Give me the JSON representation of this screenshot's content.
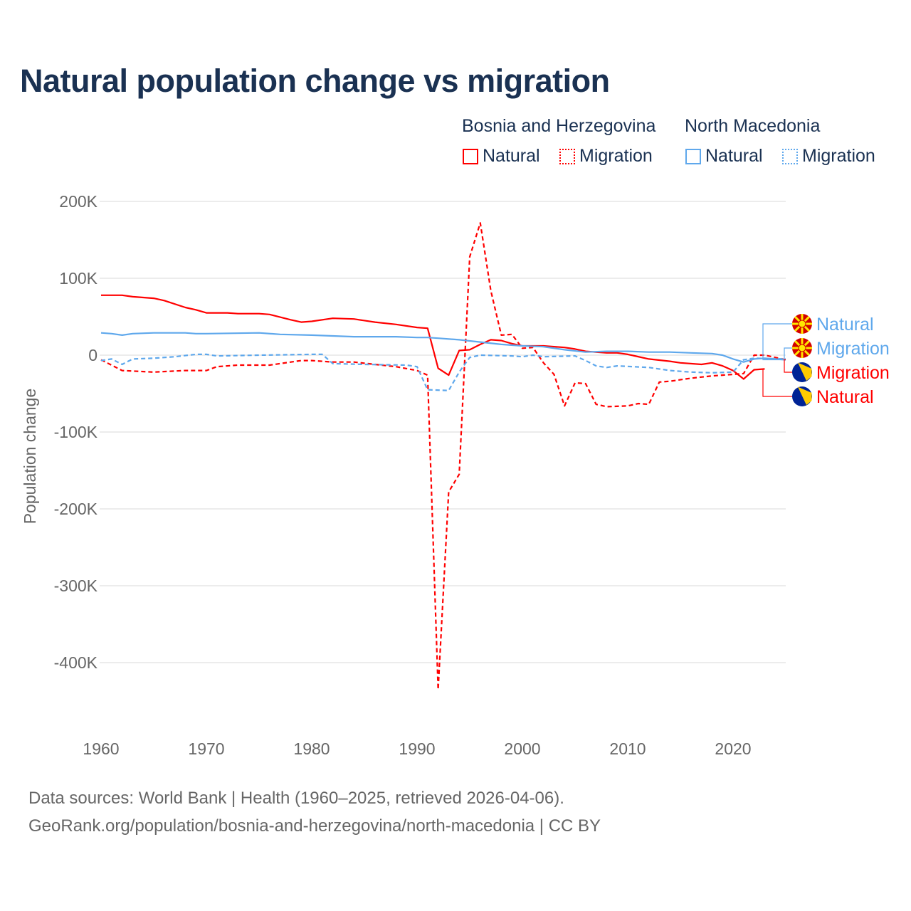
{
  "chart_data": {
    "type": "line",
    "title": "Natural population change vs migration",
    "xlabel": "",
    "ylabel": "Population change",
    "xlim": [
      1960,
      2025
    ],
    "ylim": [
      -450000,
      200000
    ],
    "xticks": [
      "1960",
      "1970",
      "1980",
      "1990",
      "2000",
      "2010",
      "2020"
    ],
    "yticks": [
      {
        "v": 200000,
        "label": "200K"
      },
      {
        "v": 100000,
        "label": "100K"
      },
      {
        "v": 0,
        "label": "0"
      },
      {
        "v": -100000,
        "label": "-100K"
      },
      {
        "v": -200000,
        "label": "-200K"
      },
      {
        "v": -300000,
        "label": "-300K"
      },
      {
        "v": -400000,
        "label": "-400K"
      }
    ],
    "grid": true,
    "legend_groups": [
      {
        "country": "Bosnia and Herzegovina",
        "items": [
          "Natural",
          "Migration"
        ],
        "color": "#ff0000"
      },
      {
        "country": "North Macedonia",
        "items": [
          "Natural",
          "Migration"
        ],
        "color": "#5fa8ec"
      }
    ],
    "series": [
      {
        "name": "Bosnia and Herzegovina Natural",
        "label": "Natural",
        "color": "#ff0000",
        "dash": false,
        "flag": "bosnia",
        "points": [
          [
            1960,
            78000
          ],
          [
            1962,
            78000
          ],
          [
            1963,
            76000
          ],
          [
            1965,
            74000
          ],
          [
            1966,
            71000
          ],
          [
            1968,
            62000
          ],
          [
            1969,
            59000
          ],
          [
            1970,
            55000
          ],
          [
            1972,
            55000
          ],
          [
            1973,
            54000
          ],
          [
            1975,
            54000
          ],
          [
            1976,
            53000
          ],
          [
            1978,
            46000
          ],
          [
            1979,
            43000
          ],
          [
            1980,
            44000
          ],
          [
            1982,
            48000
          ],
          [
            1984,
            47000
          ],
          [
            1986,
            43000
          ],
          [
            1988,
            40000
          ],
          [
            1990,
            36000
          ],
          [
            1991,
            35000
          ],
          [
            1992,
            -17000
          ],
          [
            1993,
            -26000
          ],
          [
            1994,
            6000
          ],
          [
            1995,
            7000
          ],
          [
            1996,
            14000
          ],
          [
            1997,
            20000
          ],
          [
            1998,
            19000
          ],
          [
            1999,
            15000
          ],
          [
            2000,
            12000
          ],
          [
            2002,
            12000
          ],
          [
            2004,
            10000
          ],
          [
            2005,
            8000
          ],
          [
            2006,
            5000
          ],
          [
            2008,
            3000
          ],
          [
            2009,
            3000
          ],
          [
            2010,
            1000
          ],
          [
            2012,
            -5000
          ],
          [
            2014,
            -8000
          ],
          [
            2015,
            -10000
          ],
          [
            2017,
            -12000
          ],
          [
            2018,
            -10000
          ],
          [
            2019,
            -14000
          ],
          [
            2020,
            -20000
          ],
          [
            2021,
            -31000
          ],
          [
            2022,
            -19000
          ],
          [
            2023,
            -18000
          ]
        ]
      },
      {
        "name": "Bosnia and Herzegovina Migration",
        "label": "Migration",
        "color": "#ff0000",
        "dash": true,
        "flag": "bosnia",
        "points": [
          [
            1960,
            -6000
          ],
          [
            1962,
            -20000
          ],
          [
            1965,
            -22000
          ],
          [
            1968,
            -20000
          ],
          [
            1970,
            -20000
          ],
          [
            1971,
            -15000
          ],
          [
            1973,
            -13000
          ],
          [
            1976,
            -13000
          ],
          [
            1979,
            -7000
          ],
          [
            1980,
            -7000
          ],
          [
            1982,
            -9000
          ],
          [
            1984,
            -9000
          ],
          [
            1986,
            -12000
          ],
          [
            1988,
            -15000
          ],
          [
            1990,
            -20000
          ],
          [
            1991,
            -26000
          ],
          [
            1992,
            -435000
          ],
          [
            1993,
            -178000
          ],
          [
            1994,
            -155000
          ],
          [
            1995,
            128000
          ],
          [
            1996,
            172000
          ],
          [
            1997,
            84000
          ],
          [
            1998,
            26000
          ],
          [
            1999,
            27000
          ],
          [
            2000,
            9000
          ],
          [
            2001,
            10000
          ],
          [
            2002,
            -10000
          ],
          [
            2003,
            -25000
          ],
          [
            2004,
            -66000
          ],
          [
            2005,
            -36000
          ],
          [
            2006,
            -37000
          ],
          [
            2007,
            -64000
          ],
          [
            2008,
            -67000
          ],
          [
            2010,
            -66000
          ],
          [
            2011,
            -63000
          ],
          [
            2012,
            -64000
          ],
          [
            2013,
            -35000
          ],
          [
            2014,
            -34000
          ],
          [
            2016,
            -30000
          ],
          [
            2018,
            -27000
          ],
          [
            2020,
            -25000
          ],
          [
            2021,
            -24000
          ],
          [
            2022,
            0
          ],
          [
            2023,
            0
          ],
          [
            2024,
            -3000
          ],
          [
            2025,
            -6000
          ]
        ]
      },
      {
        "name": "North Macedonia Natural",
        "label": "Natural",
        "color": "#5fa8ec",
        "dash": false,
        "flag": "macedonia",
        "points": [
          [
            1960,
            29000
          ],
          [
            1961,
            28000
          ],
          [
            1962,
            26000
          ],
          [
            1963,
            28000
          ],
          [
            1965,
            29000
          ],
          [
            1968,
            29000
          ],
          [
            1969,
            28000
          ],
          [
            1970,
            28000
          ],
          [
            1975,
            29000
          ],
          [
            1977,
            27000
          ],
          [
            1980,
            26000
          ],
          [
            1982,
            25000
          ],
          [
            1984,
            24000
          ],
          [
            1988,
            24000
          ],
          [
            1990,
            23000
          ],
          [
            1991,
            23000
          ],
          [
            1992,
            22000
          ],
          [
            1994,
            20000
          ],
          [
            1996,
            17000
          ],
          [
            1998,
            14000
          ],
          [
            2000,
            12000
          ],
          [
            2002,
            11000
          ],
          [
            2004,
            7000
          ],
          [
            2006,
            4000
          ],
          [
            2008,
            5000
          ],
          [
            2010,
            5000
          ],
          [
            2012,
            4000
          ],
          [
            2014,
            4000
          ],
          [
            2016,
            3000
          ],
          [
            2018,
            2000
          ],
          [
            2019,
            0
          ],
          [
            2020,
            -5000
          ],
          [
            2021,
            -9000
          ],
          [
            2022,
            -5000
          ],
          [
            2023,
            -4000
          ],
          [
            2025,
            -6000
          ]
        ]
      },
      {
        "name": "North Macedonia Migration",
        "label": "Migration",
        "color": "#5fa8ec",
        "dash": true,
        "flag": "macedonia",
        "points": [
          [
            1960,
            -7000
          ],
          [
            1961,
            -5000
          ],
          [
            1962,
            -12000
          ],
          [
            1963,
            -5000
          ],
          [
            1965,
            -4000
          ],
          [
            1967,
            -2000
          ],
          [
            1969,
            1000
          ],
          [
            1970,
            1000
          ],
          [
            1971,
            -1000
          ],
          [
            1975,
            0
          ],
          [
            1980,
            1000
          ],
          [
            1981,
            1000
          ],
          [
            1982,
            -11000
          ],
          [
            1985,
            -12000
          ],
          [
            1989,
            -13000
          ],
          [
            1990,
            -15000
          ],
          [
            1991,
            -45000
          ],
          [
            1993,
            -46000
          ],
          [
            1994,
            -22000
          ],
          [
            1995,
            -3000
          ],
          [
            1996,
            0
          ],
          [
            1999,
            -1000
          ],
          [
            2000,
            -2000
          ],
          [
            2001,
            0
          ],
          [
            2002,
            -2000
          ],
          [
            2005,
            -1000
          ],
          [
            2006,
            -7000
          ],
          [
            2007,
            -14000
          ],
          [
            2008,
            -16000
          ],
          [
            2009,
            -14000
          ],
          [
            2012,
            -16000
          ],
          [
            2014,
            -20000
          ],
          [
            2016,
            -22000
          ],
          [
            2018,
            -23000
          ],
          [
            2020,
            -22000
          ],
          [
            2021,
            -6000
          ],
          [
            2022,
            -4000
          ],
          [
            2025,
            -5000
          ]
        ]
      }
    ],
    "end_labels_order": [
      2,
      3,
      1,
      0
    ]
  },
  "footer": {
    "line1": "Data sources: World Bank | Health (1960–2025, retrieved 2026-04-06).",
    "line2": "GeoRank.org/population/bosnia-and-herzegovina/north-macedonia | CC BY"
  }
}
